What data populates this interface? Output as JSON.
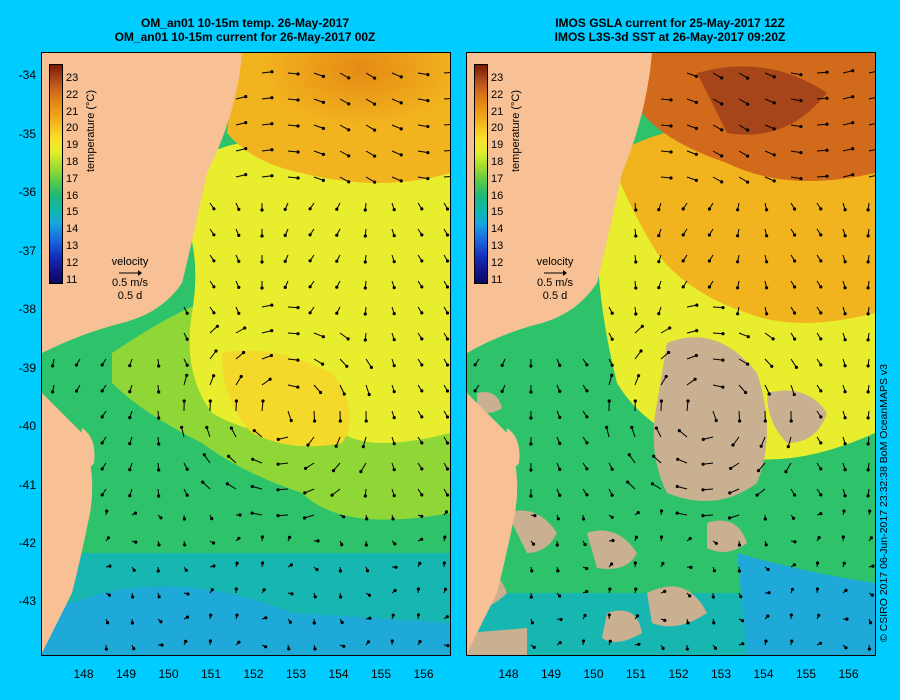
{
  "colors": {
    "background": "#00ccff",
    "land": "#f7c195",
    "no_data": "#c8b090"
  },
  "panels": [
    {
      "id": "left",
      "title_line1": "OM_an01 10-15m temp. 26-May-2017",
      "title_line2": "OM_an01 10-15m current for 26-May-2017 00Z",
      "has_missing_data": false
    },
    {
      "id": "right",
      "title_line1": "IMOS GSLA current for 25-May-2017 12Z",
      "title_line2": "IMOS L3S-3d SST at 26-May-2017 09:20Z",
      "has_missing_data": true
    }
  ],
  "colorbar": {
    "title": "temperature (°C)",
    "ticks": [
      "23",
      "22",
      "21",
      "20",
      "19",
      "18",
      "17",
      "16",
      "15",
      "14",
      "13",
      "12",
      "11"
    ]
  },
  "velocity_key": {
    "title": "velocity",
    "speed": "0.5 m/s",
    "duration": "0.5 d"
  },
  "axes": {
    "lat_ticks": [
      "-34",
      "-35",
      "-36",
      "-37",
      "-38",
      "-39",
      "-40",
      "-41",
      "-42",
      "-43"
    ],
    "lon_ticks": [
      "148",
      "149",
      "150",
      "151",
      "152",
      "153",
      "154",
      "155",
      "156"
    ],
    "lat_range": [
      -43.9,
      -33.6
    ],
    "lon_range": [
      147.0,
      156.6
    ]
  },
  "credit": "© CSIRO 2017   06-Jun-2017 23:32:38 BoM OceanMAPS v3"
}
